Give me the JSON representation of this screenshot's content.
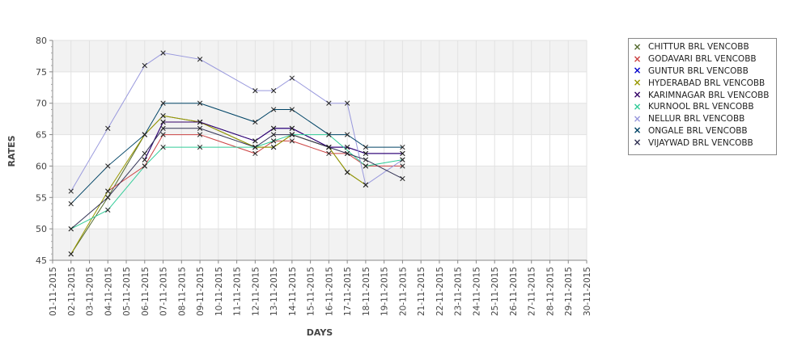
{
  "chart_data": {
    "type": "line",
    "xlabel": "DAYS",
    "ylabel": "RATES",
    "ylim": [
      45,
      80
    ],
    "yticks": [
      45,
      50,
      55,
      60,
      65,
      70,
      75,
      80
    ],
    "categories": [
      "01-11-2015",
      "02-11-2015",
      "03-11-2015",
      "04-11-2015",
      "05-11-2015",
      "06-11-2015",
      "07-11-2015",
      "08-11-2015",
      "09-11-2015",
      "10-11-2015",
      "11-11-2015",
      "12-11-2015",
      "13-11-2015",
      "14-11-2015",
      "15-11-2015",
      "16-11-2015",
      "17-11-2015",
      "18-11-2015",
      "19-11-2015",
      "20-11-2015",
      "21-11-2015",
      "22-11-2015",
      "23-11-2015",
      "24-11-2015",
      "25-11-2015",
      "26-11-2015",
      "27-11-2015",
      "28-11-2015",
      "29-11-2015",
      "30-11-2015"
    ],
    "grid": true,
    "legend_position": "right",
    "series": [
      {
        "name": "CHITTUR BRL VENCOBB",
        "color": "#556b2f",
        "points": [
          [
            "02-11-2015",
            46
          ],
          [
            "04-11-2015",
            55
          ],
          [
            "06-11-2015",
            65
          ],
          [
            "07-11-2015",
            68
          ],
          [
            "09-11-2015",
            67
          ],
          [
            "12-11-2015",
            63
          ],
          [
            "13-11-2015",
            63
          ],
          [
            "14-11-2015",
            65
          ],
          [
            "16-11-2015",
            63
          ],
          [
            "17-11-2015",
            59
          ],
          [
            "18-11-2015",
            57
          ]
        ]
      },
      {
        "name": "GODAVARI BRL VENCOBB",
        "color": "#cc4444",
        "points": [
          [
            "04-11-2015",
            56
          ],
          [
            "06-11-2015",
            60
          ],
          [
            "07-11-2015",
            65
          ],
          [
            "09-11-2015",
            65
          ],
          [
            "12-11-2015",
            62
          ],
          [
            "13-11-2015",
            64
          ],
          [
            "14-11-2015",
            64
          ],
          [
            "16-11-2015",
            62
          ],
          [
            "17-11-2015",
            62
          ],
          [
            "18-11-2015",
            60
          ],
          [
            "20-11-2015",
            60
          ]
        ]
      },
      {
        "name": "GUNTUR BRL VENCOBB",
        "color": "#0000cc",
        "points": [
          [
            "06-11-2015",
            61
          ],
          [
            "07-11-2015",
            67
          ],
          [
            "09-11-2015",
            67
          ],
          [
            "12-11-2015",
            64
          ],
          [
            "13-11-2015",
            66
          ],
          [
            "14-11-2015",
            66
          ],
          [
            "16-11-2015",
            63
          ],
          [
            "17-11-2015",
            63
          ],
          [
            "18-11-2015",
            62
          ],
          [
            "20-11-2015",
            62
          ]
        ]
      },
      {
        "name": "HYDERABAD BRL VENCOBB",
        "color": "#999900",
        "points": [
          [
            "02-11-2015",
            46
          ],
          [
            "04-11-2015",
            56
          ],
          [
            "06-11-2015",
            65
          ],
          [
            "07-11-2015",
            68
          ],
          [
            "09-11-2015",
            67
          ],
          [
            "12-11-2015",
            63
          ],
          [
            "13-11-2015",
            63
          ],
          [
            "14-11-2015",
            65
          ],
          [
            "16-11-2015",
            63
          ],
          [
            "17-11-2015",
            59
          ],
          [
            "18-11-2015",
            57
          ]
        ]
      },
      {
        "name": "KARIMNAGAR BRL VENCOBB",
        "color": "#330066",
        "points": [
          [
            "06-11-2015",
            61
          ],
          [
            "07-11-2015",
            67
          ],
          [
            "09-11-2015",
            67
          ],
          [
            "12-11-2015",
            64
          ],
          [
            "13-11-2015",
            66
          ],
          [
            "14-11-2015",
            66
          ],
          [
            "16-11-2015",
            63
          ],
          [
            "17-11-2015",
            63
          ],
          [
            "18-11-2015",
            62
          ],
          [
            "20-11-2015",
            62
          ]
        ]
      },
      {
        "name": "KURNOOL BRL VENCOBB",
        "color": "#33cc99",
        "points": [
          [
            "02-11-2015",
            50
          ],
          [
            "04-11-2015",
            53
          ],
          [
            "06-11-2015",
            60
          ],
          [
            "07-11-2015",
            63
          ],
          [
            "09-11-2015",
            63
          ],
          [
            "12-11-2015",
            63
          ],
          [
            "13-11-2015",
            64
          ],
          [
            "14-11-2015",
            65
          ],
          [
            "16-11-2015",
            65
          ],
          [
            "18-11-2015",
            60
          ],
          [
            "20-11-2015",
            61
          ]
        ]
      },
      {
        "name": "NELLUR BRL VENCOBB",
        "color": "#9999dd",
        "points": [
          [
            "02-11-2015",
            56
          ],
          [
            "04-11-2015",
            66
          ],
          [
            "06-11-2015",
            76
          ],
          [
            "07-11-2015",
            78
          ],
          [
            "09-11-2015",
            77
          ],
          [
            "12-11-2015",
            72
          ],
          [
            "13-11-2015",
            72
          ],
          [
            "14-11-2015",
            74
          ],
          [
            "16-11-2015",
            70
          ],
          [
            "17-11-2015",
            70
          ],
          [
            "18-11-2015",
            57
          ],
          [
            "20-11-2015",
            61
          ]
        ]
      },
      {
        "name": "ONGALE BRL VENCOBB",
        "color": "#004466",
        "points": [
          [
            "02-11-2015",
            54
          ],
          [
            "04-11-2015",
            60
          ],
          [
            "06-11-2015",
            65
          ],
          [
            "07-11-2015",
            70
          ],
          [
            "09-11-2015",
            70
          ],
          [
            "12-11-2015",
            67
          ],
          [
            "13-11-2015",
            69
          ],
          [
            "14-11-2015",
            69
          ],
          [
            "16-11-2015",
            65
          ],
          [
            "17-11-2015",
            65
          ],
          [
            "18-11-2015",
            63
          ],
          [
            "20-11-2015",
            63
          ]
        ]
      },
      {
        "name": "VIJAYWAD BRL VENCOBB",
        "color": "#333355",
        "points": [
          [
            "02-11-2015",
            50
          ],
          [
            "04-11-2015",
            55
          ],
          [
            "06-11-2015",
            62
          ],
          [
            "07-11-2015",
            66
          ],
          [
            "09-11-2015",
            66
          ],
          [
            "12-11-2015",
            63
          ],
          [
            "13-11-2015",
            65
          ],
          [
            "14-11-2015",
            65
          ],
          [
            "16-11-2015",
            63
          ],
          [
            "17-11-2015",
            62
          ],
          [
            "18-11-2015",
            61
          ],
          [
            "20-11-2015",
            58
          ]
        ]
      }
    ]
  }
}
